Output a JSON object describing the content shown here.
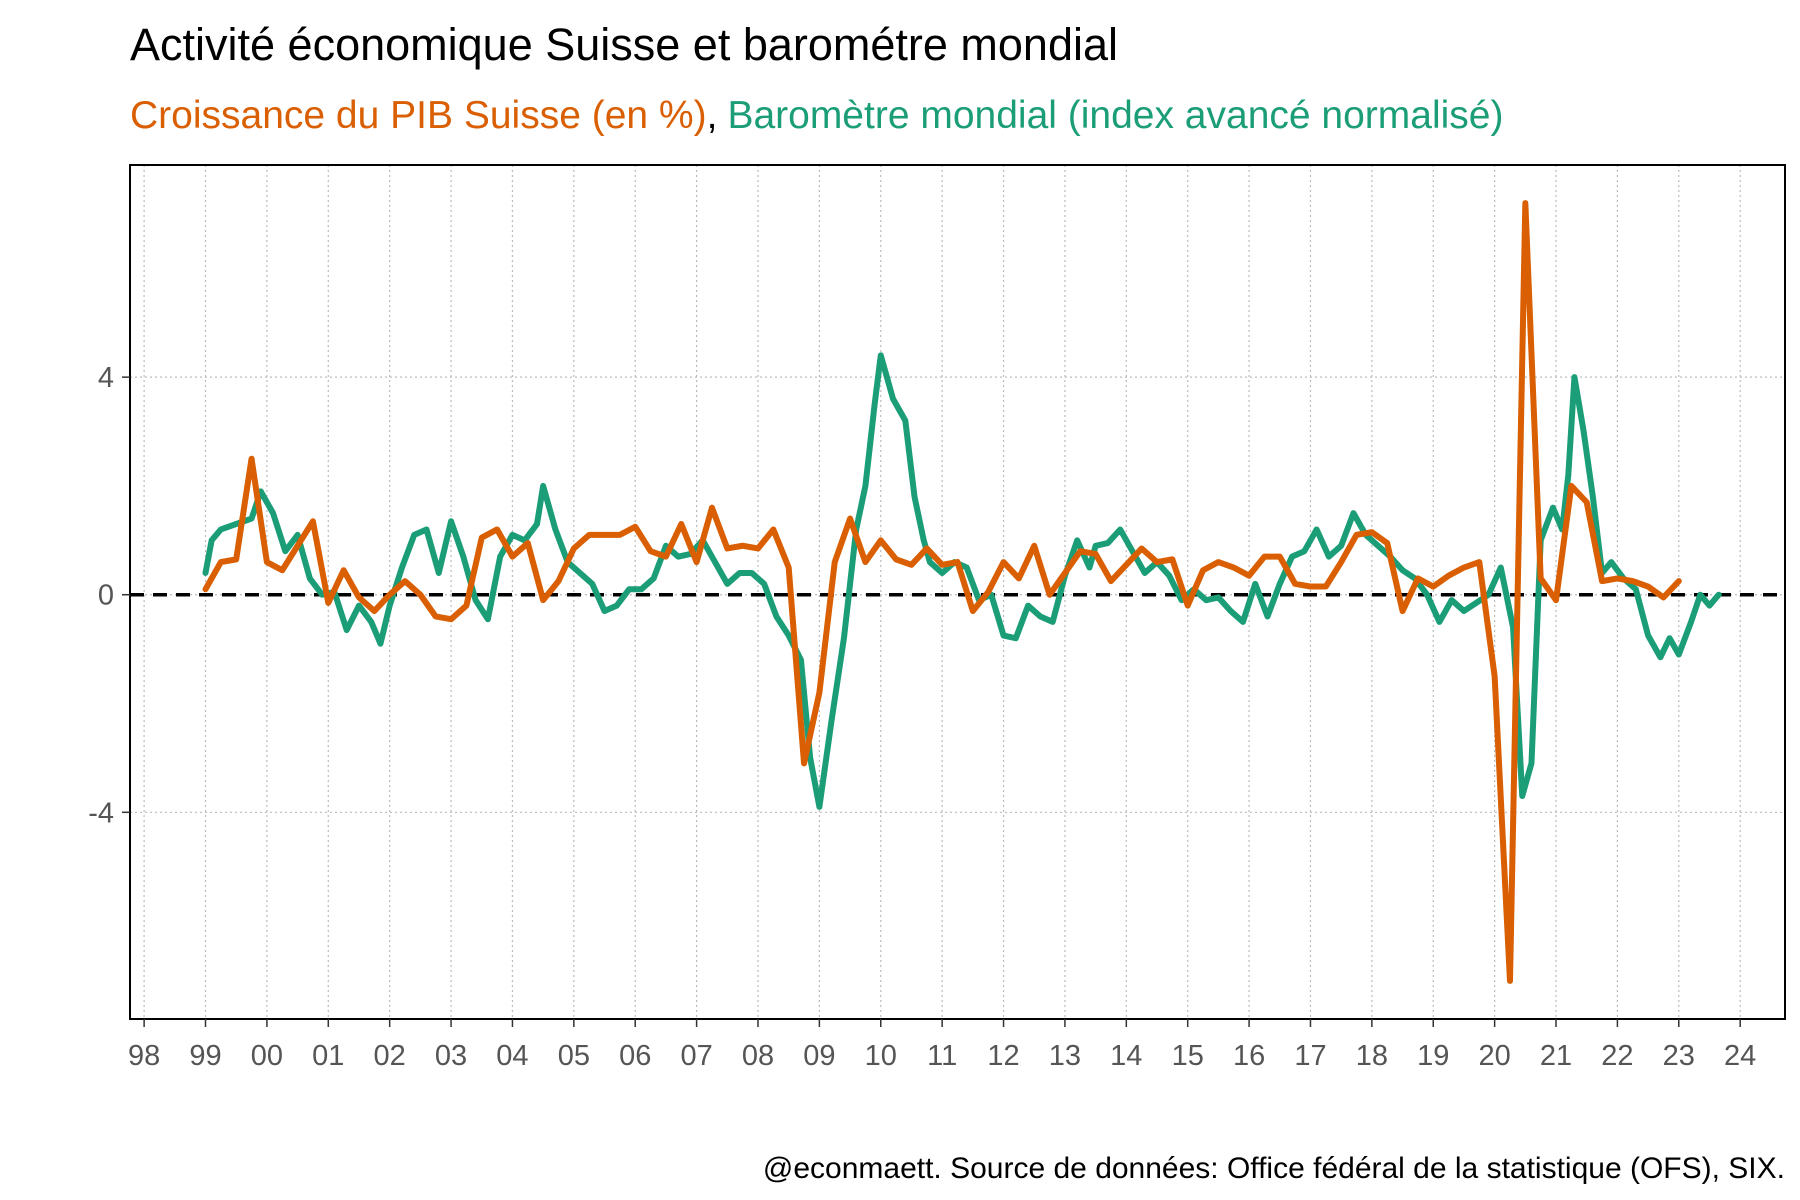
{
  "chart_data": {
    "type": "line",
    "title": "Activité économique Suisse et barométre mondial",
    "subtitle_separator": ",",
    "caption": "@econmaett. Source de données: Office fédéral de la statistique (OFS), SIX.",
    "xlim": [
      1997.77,
      2024.73
    ],
    "ylim": [
      -7.8,
      7.9
    ],
    "yticks": [
      -4,
      0,
      4
    ],
    "xticks": [
      {
        "value": 1998,
        "label": "98"
      },
      {
        "value": 1999,
        "label": "99"
      },
      {
        "value": 2000,
        "label": "00"
      },
      {
        "value": 2001,
        "label": "01"
      },
      {
        "value": 2002,
        "label": "02"
      },
      {
        "value": 2003,
        "label": "03"
      },
      {
        "value": 2004,
        "label": "04"
      },
      {
        "value": 2005,
        "label": "05"
      },
      {
        "value": 2006,
        "label": "06"
      },
      {
        "value": 2007,
        "label": "07"
      },
      {
        "value": 2008,
        "label": "08"
      },
      {
        "value": 2009,
        "label": "09"
      },
      {
        "value": 2010,
        "label": "10"
      },
      {
        "value": 2011,
        "label": "11"
      },
      {
        "value": 2012,
        "label": "12"
      },
      {
        "value": 2013,
        "label": "13"
      },
      {
        "value": 2014,
        "label": "14"
      },
      {
        "value": 2015,
        "label": "15"
      },
      {
        "value": 2016,
        "label": "16"
      },
      {
        "value": 2017,
        "label": "17"
      },
      {
        "value": 2018,
        "label": "18"
      },
      {
        "value": 2019,
        "label": "19"
      },
      {
        "value": 2020,
        "label": "20"
      },
      {
        "value": 2021,
        "label": "21"
      },
      {
        "value": 2022,
        "label": "22"
      },
      {
        "value": 2023,
        "label": "23"
      },
      {
        "value": 2024,
        "label": "24"
      }
    ],
    "grid": true,
    "hline": 0,
    "series": [
      {
        "name": "Croissance du PIB Suisse (en %)",
        "color": "#d95f02",
        "x": [
          1999.0,
          1999.25,
          1999.5,
          1999.75,
          2000.0,
          2000.25,
          2000.5,
          2000.75,
          2001.0,
          2001.25,
          2001.5,
          2001.75,
          2002.0,
          2002.25,
          2002.5,
          2002.75,
          2003.0,
          2003.25,
          2003.5,
          2003.75,
          2004.0,
          2004.25,
          2004.5,
          2004.75,
          2005.0,
          2005.25,
          2005.5,
          2005.75,
          2006.0,
          2006.25,
          2006.5,
          2006.75,
          2007.0,
          2007.25,
          2007.5,
          2007.75,
          2008.0,
          2008.25,
          2008.5,
          2008.75,
          2009.0,
          2009.25,
          2009.5,
          2009.75,
          2010.0,
          2010.25,
          2010.5,
          2010.75,
          2011.0,
          2011.25,
          2011.5,
          2011.75,
          2012.0,
          2012.25,
          2012.5,
          2012.75,
          2013.0,
          2013.25,
          2013.5,
          2013.75,
          2014.0,
          2014.25,
          2014.5,
          2014.75,
          2015.0,
          2015.25,
          2015.5,
          2015.75,
          2016.0,
          2016.25,
          2016.5,
          2016.75,
          2017.0,
          2017.25,
          2017.5,
          2017.75,
          2018.0,
          2018.25,
          2018.5,
          2018.75,
          2019.0,
          2019.25,
          2019.5,
          2019.75,
          2020.0,
          2020.25,
          2020.5,
          2020.75,
          2021.0,
          2021.25,
          2021.5,
          2021.75,
          2022.0,
          2022.25,
          2022.5,
          2022.75,
          2023.0
        ],
        "values": [
          0.1,
          0.6,
          0.65,
          2.5,
          0.6,
          0.45,
          0.9,
          1.35,
          -0.15,
          0.45,
          -0.05,
          -0.3,
          0.0,
          0.25,
          0.0,
          -0.4,
          -0.45,
          -0.2,
          1.05,
          1.2,
          0.7,
          0.95,
          -0.1,
          0.25,
          0.85,
          1.1,
          1.1,
          1.1,
          1.25,
          0.8,
          0.7,
          1.3,
          0.6,
          1.6,
          0.85,
          0.9,
          0.85,
          1.2,
          0.5,
          -3.1,
          -1.8,
          0.6,
          1.4,
          0.6,
          1.0,
          0.65,
          0.55,
          0.85,
          0.55,
          0.6,
          -0.3,
          0.05,
          0.6,
          0.3,
          0.9,
          0.0,
          0.4,
          0.8,
          0.75,
          0.25,
          0.55,
          0.85,
          0.6,
          0.65,
          -0.2,
          0.45,
          0.6,
          0.5,
          0.35,
          0.7,
          0.7,
          0.2,
          0.15,
          0.15,
          0.6,
          1.1,
          1.15,
          0.95,
          -0.3,
          0.3,
          0.15,
          0.35,
          0.5,
          0.6,
          -1.5,
          -7.1,
          7.2,
          0.3,
          -0.1,
          2.0,
          1.7,
          0.25,
          0.3,
          0.25,
          0.15,
          -0.05,
          0.25
        ]
      },
      {
        "name": "Baromètre mondial (index avancé normalisé)",
        "color": "#1b9e77",
        "x": [
          1999.0,
          1999.1,
          1999.25,
          1999.5,
          1999.75,
          1999.9,
          2000.1,
          2000.3,
          2000.5,
          2000.7,
          2000.9,
          2001.1,
          2001.3,
          2001.5,
          2001.7,
          2001.85,
          2002.0,
          2002.2,
          2002.4,
          2002.6,
          2002.8,
          2003.0,
          2003.2,
          2003.4,
          2003.6,
          2003.8,
          2004.0,
          2004.2,
          2004.4,
          2004.5,
          2004.7,
          2004.9,
          2005.1,
          2005.3,
          2005.5,
          2005.7,
          2005.9,
          2006.1,
          2006.3,
          2006.5,
          2006.7,
          2006.9,
          2007.1,
          2007.3,
          2007.5,
          2007.7,
          2007.9,
          2008.1,
          2008.3,
          2008.5,
          2008.7,
          2008.85,
          2009.0,
          2009.2,
          2009.4,
          2009.6,
          2009.75,
          2009.9,
          2010.0,
          2010.2,
          2010.4,
          2010.55,
          2010.7,
          2010.8,
          2011.0,
          2011.2,
          2011.4,
          2011.6,
          2011.8,
          2012.0,
          2012.2,
          2012.4,
          2012.6,
          2012.8,
          2013.0,
          2013.2,
          2013.4,
          2013.5,
          2013.7,
          2013.9,
          2014.1,
          2014.3,
          2014.5,
          2014.7,
          2014.9,
          2015.1,
          2015.3,
          2015.5,
          2015.7,
          2015.9,
          2016.1,
          2016.3,
          2016.5,
          2016.7,
          2016.9,
          2017.1,
          2017.3,
          2017.5,
          2017.7,
          2017.9,
          2018.1,
          2018.3,
          2018.5,
          2018.7,
          2018.9,
          2019.1,
          2019.3,
          2019.5,
          2019.7,
          2019.9,
          2020.1,
          2020.3,
          2020.45,
          2020.6,
          2020.75,
          2020.95,
          2021.1,
          2021.2,
          2021.3,
          2021.45,
          2021.6,
          2021.75,
          2021.9,
          2022.1,
          2022.3,
          2022.5,
          2022.7,
          2022.85,
          2023.0,
          2023.2,
          2023.35,
          2023.5,
          2023.65
        ],
        "values": [
          0.4,
          1.0,
          1.2,
          1.3,
          1.4,
          1.9,
          1.5,
          0.8,
          1.1,
          0.3,
          0.0,
          0.05,
          -0.65,
          -0.2,
          -0.5,
          -0.9,
          -0.2,
          0.5,
          1.1,
          1.2,
          0.4,
          1.35,
          0.7,
          -0.1,
          -0.45,
          0.7,
          1.1,
          1.0,
          1.3,
          2.0,
          1.2,
          0.6,
          0.4,
          0.2,
          -0.3,
          -0.2,
          0.1,
          0.1,
          0.3,
          0.9,
          0.7,
          0.75,
          1.0,
          0.6,
          0.2,
          0.4,
          0.4,
          0.2,
          -0.4,
          -0.75,
          -1.2,
          -3.0,
          -3.9,
          -2.3,
          -0.8,
          1.2,
          2.0,
          3.5,
          4.4,
          3.6,
          3.2,
          1.8,
          1.0,
          0.6,
          0.4,
          0.6,
          0.5,
          -0.1,
          0.0,
          -0.75,
          -0.8,
          -0.2,
          -0.4,
          -0.5,
          0.35,
          1.0,
          0.5,
          0.9,
          0.95,
          1.2,
          0.8,
          0.4,
          0.6,
          0.35,
          -0.1,
          0.1,
          -0.1,
          -0.05,
          -0.3,
          -0.5,
          0.2,
          -0.4,
          0.2,
          0.7,
          0.8,
          1.2,
          0.7,
          0.9,
          1.5,
          1.1,
          0.9,
          0.7,
          0.45,
          0.3,
          0.0,
          -0.5,
          -0.1,
          -0.3,
          -0.15,
          0.0,
          0.5,
          -0.6,
          -3.7,
          -3.1,
          1.0,
          1.6,
          1.2,
          2.2,
          4.0,
          3.0,
          1.8,
          0.4,
          0.6,
          0.3,
          0.1,
          -0.75,
          -1.15,
          -0.8,
          -1.1,
          -0.5,
          0.0,
          -0.2,
          0.0
        ]
      }
    ]
  }
}
